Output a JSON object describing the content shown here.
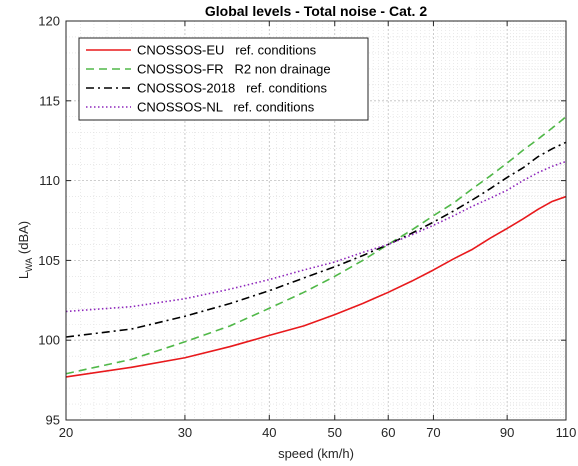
{
  "chart_data": {
    "type": "line",
    "title": "Global levels - Total noise - Cat. 2",
    "xlabel": "speed (km/h)",
    "ylabel_main": "L",
    "ylabel_sub": "WA",
    "ylabel_unit": " (dBA)",
    "x_scale": "log",
    "xlim": [
      20,
      110
    ],
    "ylim": [
      95,
      120
    ],
    "x_ticks": [
      20,
      30,
      40,
      50,
      60,
      70,
      90,
      110
    ],
    "x_tick_labels": [
      "20",
      "30",
      "40",
      "50",
      "60",
      "70",
      "90",
      "110"
    ],
    "y_ticks": [
      95,
      100,
      105,
      110,
      115,
      120
    ],
    "y_tick_labels": [
      "95",
      "100",
      "105",
      "110",
      "115",
      "120"
    ],
    "grid": true,
    "minor_grid": true,
    "legend_position": "top-left",
    "x": [
      20,
      25,
      30,
      35,
      40,
      45,
      50,
      55,
      60,
      65,
      70,
      75,
      80,
      85,
      90,
      95,
      100,
      105,
      110
    ],
    "series": [
      {
        "name": "CNOSSOS-EU   ref. conditions",
        "color": "#e8191c",
        "dash": "solid",
        "values": [
          97.7,
          98.3,
          98.9,
          99.6,
          100.3,
          100.9,
          101.6,
          102.3,
          103.0,
          103.7,
          104.4,
          105.1,
          105.7,
          106.4,
          107.0,
          107.6,
          108.2,
          108.7,
          109.0
        ]
      },
      {
        "name": "CNOSSOS-FR   R2 non drainage",
        "color": "#50b848",
        "dash": "dashed",
        "values": [
          97.9,
          98.8,
          99.9,
          100.9,
          102.0,
          103.0,
          104.0,
          105.0,
          106.0,
          106.9,
          107.8,
          108.6,
          109.5,
          110.3,
          111.1,
          111.9,
          112.6,
          113.3,
          114.0
        ]
      },
      {
        "name": "CNOSSOS-2018   ref. conditions",
        "color": "#000000",
        "dash": "dashdot",
        "values": [
          100.2,
          100.7,
          101.5,
          102.3,
          103.1,
          103.9,
          104.6,
          105.3,
          106.0,
          106.7,
          107.4,
          108.1,
          108.8,
          109.5,
          110.2,
          110.8,
          111.5,
          112.0,
          112.4
        ]
      },
      {
        "name": "CNOSSOS-NL   ref. conditions",
        "color": "#8e26bc",
        "dash": "dotted",
        "values": [
          101.8,
          102.1,
          102.6,
          103.2,
          103.8,
          104.4,
          104.9,
          105.5,
          106.0,
          106.6,
          107.2,
          107.8,
          108.4,
          108.9,
          109.4,
          110.0,
          110.5,
          110.9,
          111.2
        ]
      }
    ]
  }
}
